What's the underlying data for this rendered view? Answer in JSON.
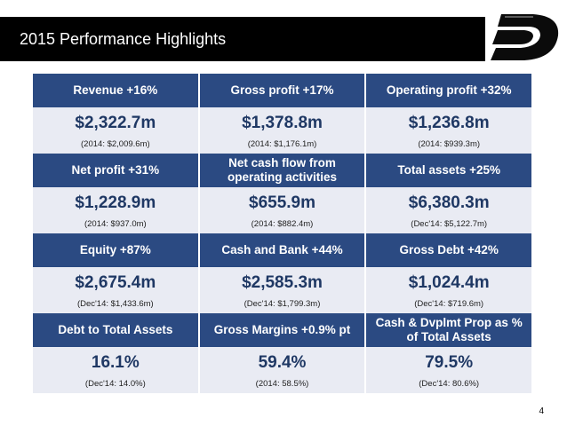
{
  "title": "2015 Performance Highlights",
  "page_number": "4",
  "logo_icon": "d-logo-icon",
  "colors": {
    "header": "#2b4a82",
    "value_text": "#1f3864",
    "cell_bg": "#e9ebf3"
  },
  "rows": [
    {
      "headers": [
        "Revenue +16%",
        "Gross profit +17%",
        "Operating profit +32%"
      ],
      "values": [
        "$2,322.7m",
        "$1,378.8m",
        "$1,236.8m"
      ],
      "notes": [
        "(2014: $2,009.6m)",
        "(2014: $1,176.1m)",
        "(2014: $939.3m)"
      ]
    },
    {
      "headers": [
        "Net profit +31%",
        "Net cash flow from operating activities",
        "Total assets +25%"
      ],
      "values": [
        "$1,228.9m",
        "$655.9m",
        "$6,380.3m"
      ],
      "notes": [
        "(2014: $937.0m)",
        "(2014: $882.4m)",
        "(Dec'14: $5,122.7m)"
      ]
    },
    {
      "headers": [
        "Equity +87%",
        "Cash and Bank +44%",
        "Gross Debt +42%"
      ],
      "values": [
        "$2,675.4m",
        "$2,585.3m",
        "$1,024.4m"
      ],
      "notes": [
        "(Dec'14: $1,433.6m)",
        "(Dec'14: $1,799.3m)",
        "(Dec'14: $719.6m)"
      ]
    },
    {
      "headers": [
        "Debt to Total Assets",
        "Gross Margins +0.9% pt",
        "Cash & Dvplmt Prop as % of Total Assets"
      ],
      "values": [
        "16.1%",
        "59.4%",
        "79.5%"
      ],
      "notes": [
        "(Dec'14: 14.0%)",
        "(2014: 58.5%)",
        "(Dec'14: 80.6%)"
      ]
    }
  ]
}
